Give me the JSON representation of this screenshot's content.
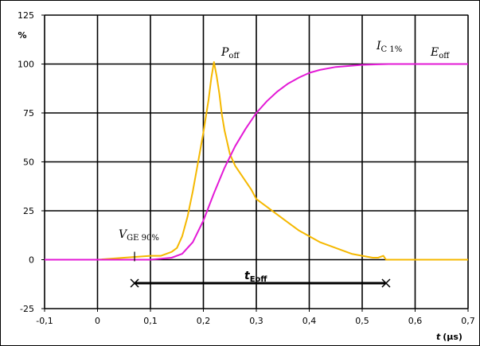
{
  "chart_data": {
    "type": "line",
    "ylabel": "%",
    "xlabel_main": "t",
    "xlabel_unit": "(µs)",
    "xlim": [
      -0.1,
      0.7
    ],
    "ylim": [
      -25,
      125
    ],
    "x_ticks": [
      -0.1,
      0,
      0.1,
      0.2,
      0.3,
      0.4,
      0.5,
      0.6,
      0.7
    ],
    "x_tick_labels": [
      "-0,1",
      "0",
      "0,1",
      "0,2",
      "0,3",
      "0,4",
      "0,5",
      "0,6",
      "0,7"
    ],
    "y_ticks": [
      -25,
      0,
      25,
      50,
      75,
      100,
      125
    ],
    "y_tick_labels": [
      "-25",
      "0",
      "25",
      "50",
      "75",
      "100",
      "125"
    ],
    "grid": true,
    "colors": {
      "p_off": "#f5b800",
      "e_off": "#e31ad6"
    },
    "series": [
      {
        "key": "p_off",
        "x": [
          -0.1,
          0.0,
          0.05,
          0.1,
          0.12,
          0.14,
          0.15,
          0.16,
          0.17,
          0.18,
          0.19,
          0.2,
          0.21,
          0.215,
          0.22,
          0.225,
          0.23,
          0.235,
          0.24,
          0.25,
          0.26,
          0.27,
          0.28,
          0.29,
          0.3,
          0.32,
          0.34,
          0.36,
          0.38,
          0.4,
          0.42,
          0.44,
          0.46,
          0.48,
          0.5,
          0.52,
          0.53,
          0.54,
          0.545,
          0.55,
          0.6,
          0.7
        ],
        "y": [
          0,
          0,
          1,
          2,
          2,
          4,
          6,
          12,
          22,
          35,
          50,
          65,
          82,
          93,
          101,
          94,
          85,
          74,
          66,
          54,
          48,
          44,
          40,
          36,
          31,
          27,
          23,
          19,
          15,
          12,
          9,
          7,
          5,
          3,
          2,
          1,
          1,
          2,
          0,
          0,
          0,
          0
        ]
      },
      {
        "key": "e_off",
        "x": [
          -0.1,
          0.1,
          0.14,
          0.16,
          0.18,
          0.2,
          0.22,
          0.24,
          0.26,
          0.28,
          0.3,
          0.32,
          0.34,
          0.36,
          0.38,
          0.4,
          0.42,
          0.45,
          0.5,
          0.55,
          0.6,
          0.7
        ],
        "y": [
          0,
          0,
          1,
          3,
          9,
          20,
          34,
          47,
          58,
          67,
          75,
          81,
          86,
          90,
          93,
          95.5,
          97,
          98.5,
          99.6,
          100,
          100,
          100
        ]
      }
    ],
    "annotations": {
      "p_off_label": {
        "base": "P",
        "sub": "off"
      },
      "e_off_label": {
        "base": "E",
        "sub": "off"
      },
      "ic_label": {
        "base": "I",
        "sub": "C 1%"
      },
      "vge_label": {
        "base": "V",
        "sub": "GE 90%"
      },
      "teoff_label": {
        "base": "t",
        "sub": "Eoff"
      }
    },
    "markers": {
      "vge90_x": 0.07,
      "ic1_x": 0.545,
      "teoff_y": -12
    }
  }
}
